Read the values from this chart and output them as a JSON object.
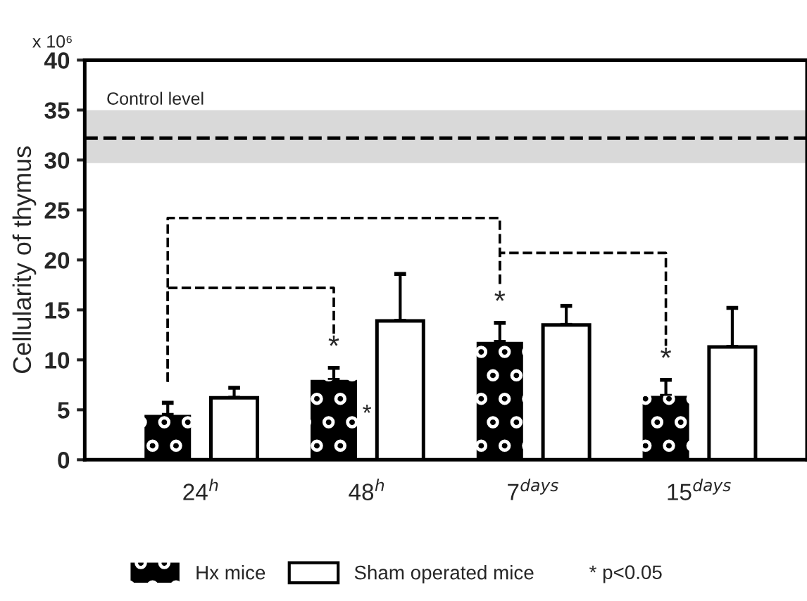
{
  "chart_data": {
    "type": "bar",
    "ylabel": "Cellularity of thymus",
    "categories": [
      "24$^{h}$",
      "48$^{h}$",
      "7$^{days}$",
      "15$^{days}$"
    ],
    "series": [
      {
        "name": "Hx mice",
        "color": "#000000",
        "values": [
          4.5,
          8.0,
          11.8,
          6.4
        ],
        "errors": [
          [
            4.5,
            5.7
          ],
          [
            8.0,
            9.2
          ],
          [
            11.8,
            13.7
          ],
          [
            6.4,
            8.0
          ]
        ]
      },
      {
        "name": "Sham operated mice",
        "color": "#ffffff",
        "values": [
          6.2,
          13.9,
          13.5,
          11.3
        ],
        "errors": [
          [
            6.2,
            7.2
          ],
          [
            13.9,
            18.6
          ],
          [
            13.5,
            15.4
          ],
          [
            11.3,
            15.2
          ]
        ]
      }
    ],
    "ylim": [
      0,
      40
    ],
    "yticks": [
      0,
      5,
      10,
      15,
      20,
      25,
      30,
      35,
      40
    ],
    "ref_lines": [
      {
        "axis": "y",
        "value": 32.2,
        "label": "Control level",
        "color": "#000000",
        "line_style": "dashed"
      }
    ],
    "bands": [
      {
        "axis": "y",
        "from": 29.7,
        "to": 35,
        "color": "#d9d9d9"
      }
    ],
    "annotations": [
      "x 10⁶",
      "* p<0.05",
      "*",
      "*",
      "*",
      "*"
    ],
    "grid": false,
    "legend": "bottom"
  }
}
